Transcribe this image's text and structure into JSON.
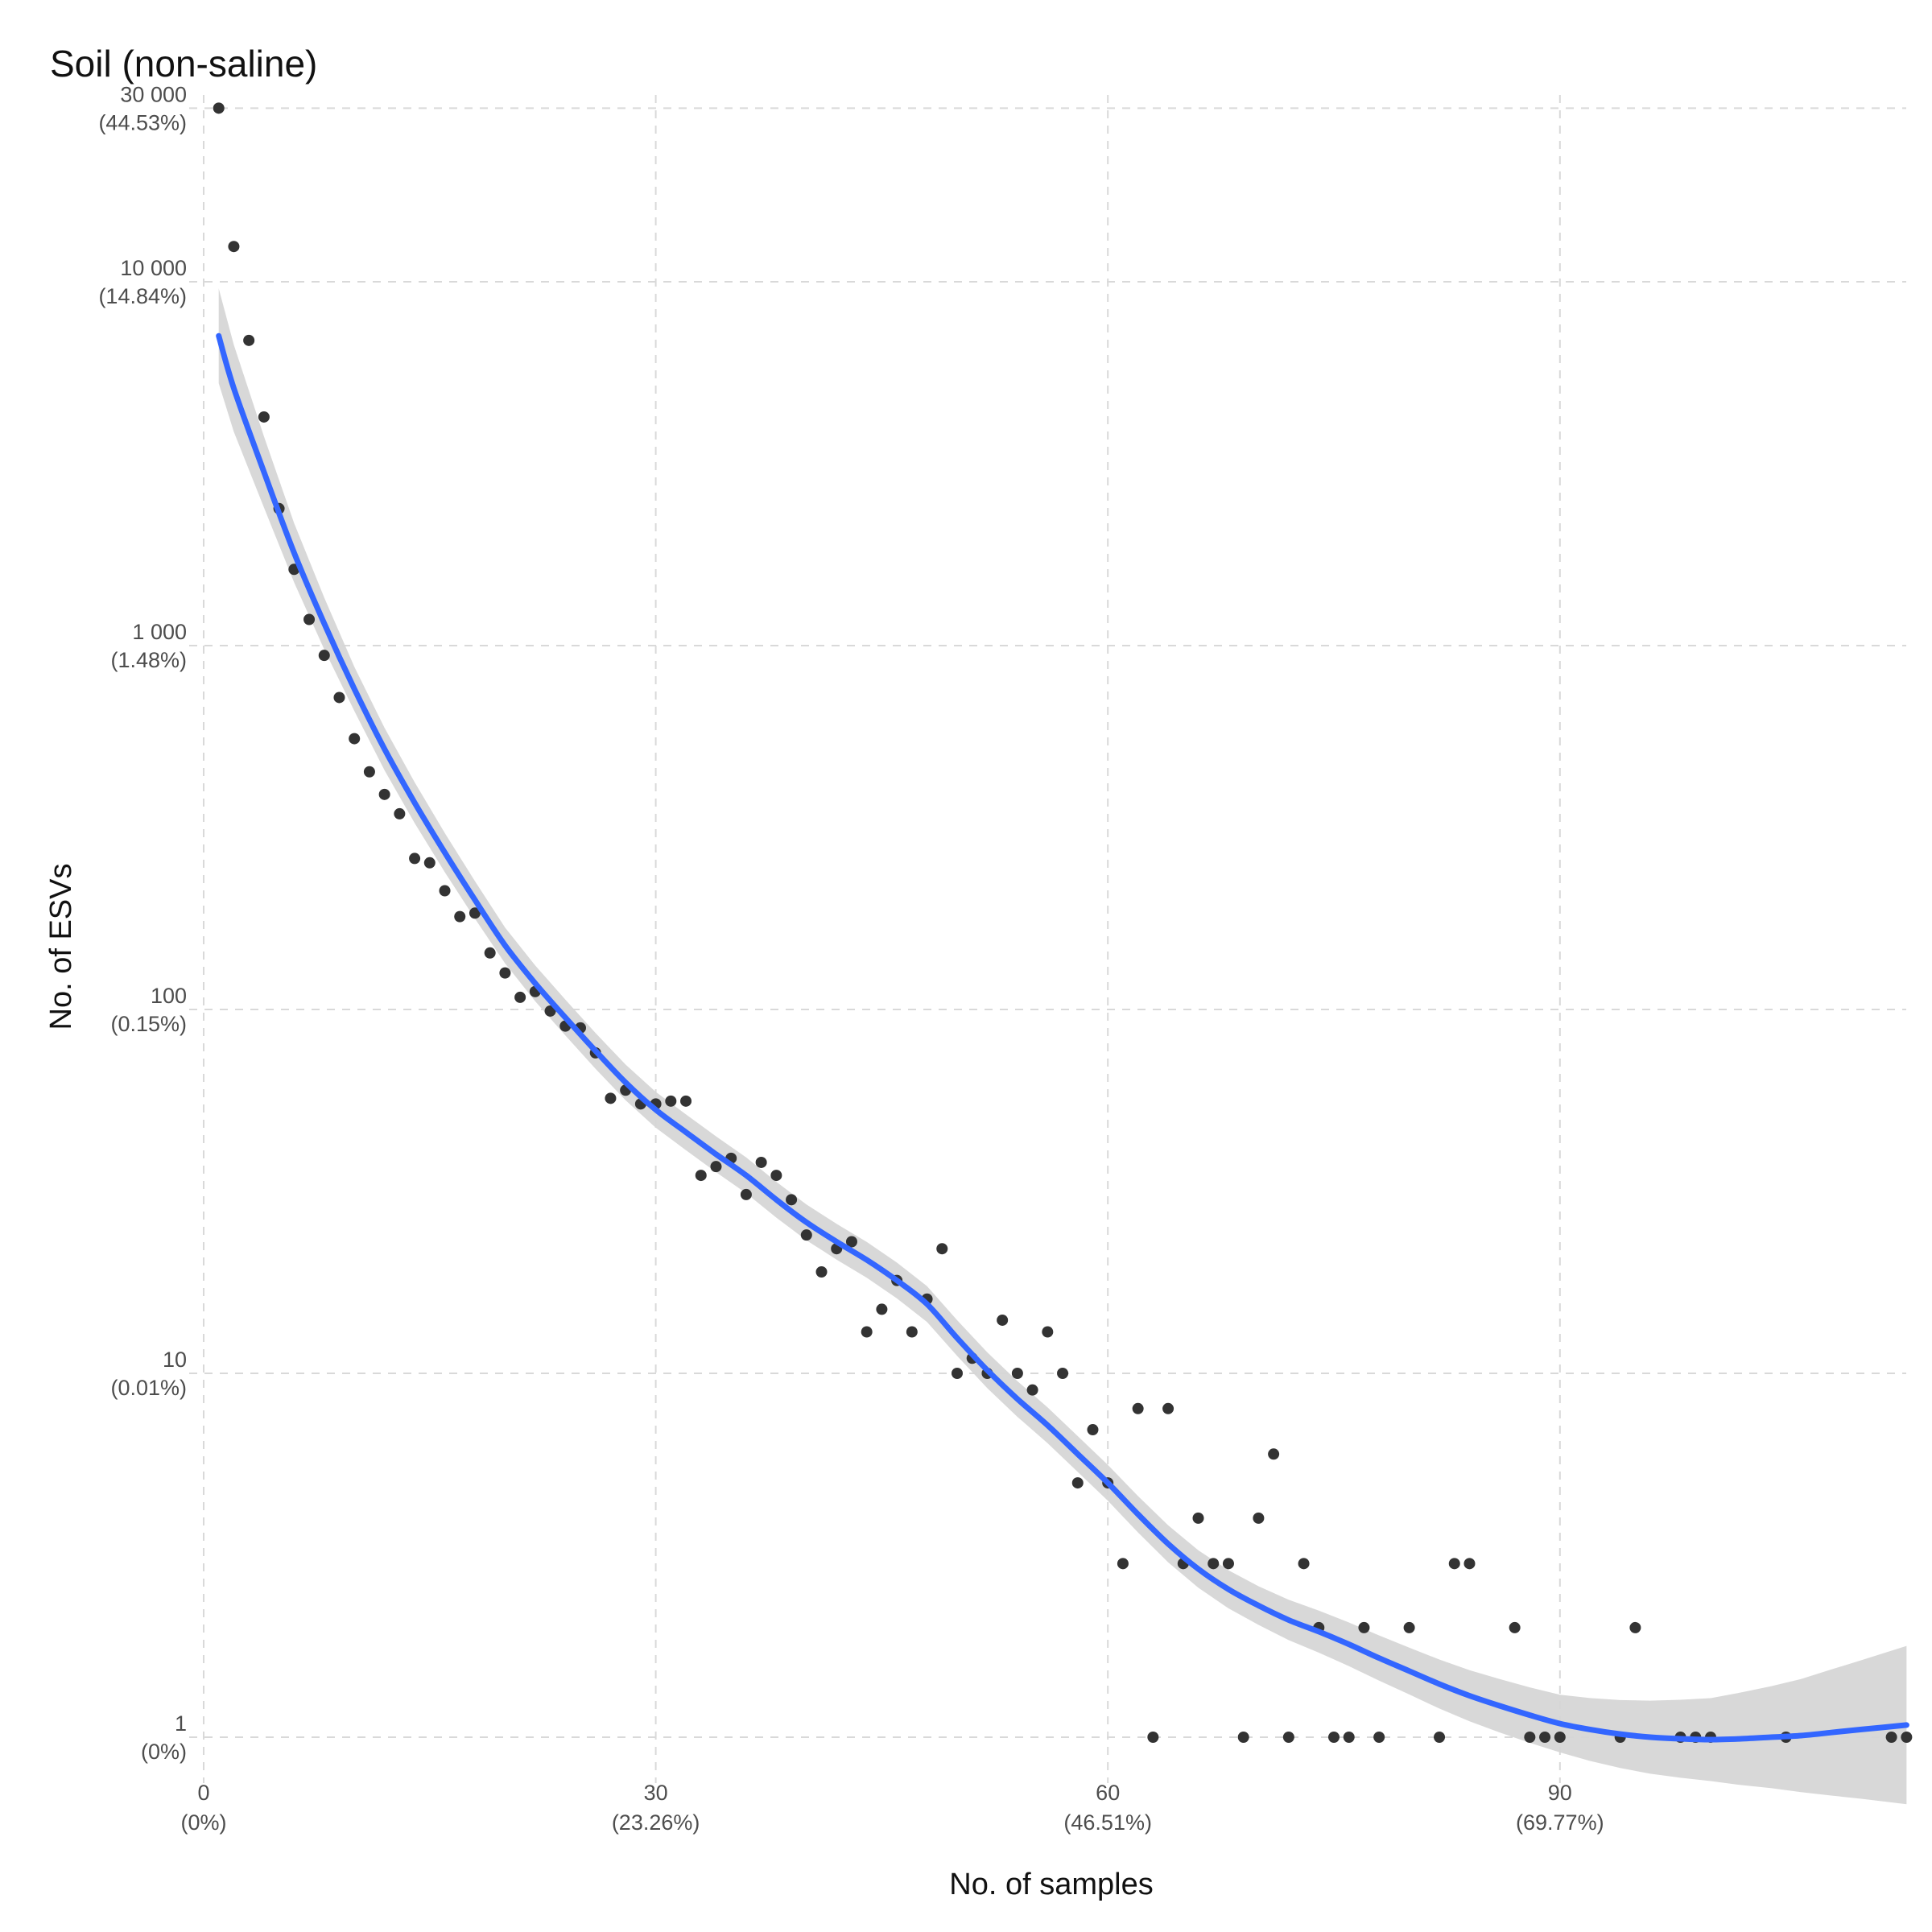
{
  "chart_data": {
    "type": "scatter",
    "title": "Soil (non-saline)",
    "xlabel": "No. of samples",
    "ylabel": "No. of ESVs",
    "x_scale": "linear",
    "y_scale": "log",
    "xlim": [
      0,
      113
    ],
    "ylim": [
      0.5,
      30000
    ],
    "grid": true,
    "legend": "none",
    "x_ticks": [
      {
        "value": 0,
        "label": "0",
        "sublabel": "(0%)"
      },
      {
        "value": 30,
        "label": "30",
        "sublabel": "(23.26%)"
      },
      {
        "value": 60,
        "label": "60",
        "sublabel": "(46.51%)"
      },
      {
        "value": 90,
        "label": "90",
        "sublabel": "(69.77%)"
      }
    ],
    "y_ticks": [
      {
        "value": 30000,
        "label": "30 000",
        "sublabel": "(44.53%)"
      },
      {
        "value": 10000,
        "label": "10 000",
        "sublabel": "(14.84%)"
      },
      {
        "value": 1000,
        "label": "1 000",
        "sublabel": "(1.48%)"
      },
      {
        "value": 100,
        "label": "100",
        "sublabel": "(0.15%)"
      },
      {
        "value": 10,
        "label": "10",
        "sublabel": "(0.01%)"
      },
      {
        "value": 1,
        "label": "1",
        "sublabel": "(0%)"
      }
    ],
    "point_color": "#333333",
    "points": [
      [
        1,
        30000
      ],
      [
        2,
        12500
      ],
      [
        3,
        6900
      ],
      [
        4,
        4250
      ],
      [
        5,
        2380
      ],
      [
        6,
        1620
      ],
      [
        7,
        1180
      ],
      [
        8,
        940
      ],
      [
        9,
        720
      ],
      [
        10,
        555
      ],
      [
        11,
        450
      ],
      [
        12,
        390
      ],
      [
        13,
        345
      ],
      [
        14,
        260
      ],
      [
        15,
        253
      ],
      [
        16,
        212
      ],
      [
        17,
        180
      ],
      [
        18,
        184
      ],
      [
        19,
        143
      ],
      [
        20,
        126
      ],
      [
        21,
        108
      ],
      [
        22,
        112
      ],
      [
        23,
        99
      ],
      [
        24,
        90
      ],
      [
        25,
        89
      ],
      [
        26,
        76
      ],
      [
        27,
        57
      ],
      [
        28,
        60
      ],
      [
        29,
        55
      ],
      [
        30,
        55
      ],
      [
        31,
        56
      ],
      [
        32,
        56
      ],
      [
        33,
        35
      ],
      [
        34,
        37
      ],
      [
        35,
        39
      ],
      [
        36,
        31
      ],
      [
        37,
        38
      ],
      [
        38,
        35
      ],
      [
        39,
        30
      ],
      [
        40,
        24
      ],
      [
        41,
        19
      ],
      [
        42,
        22
      ],
      [
        43,
        23
      ],
      [
        44,
        13
      ],
      [
        45,
        15
      ],
      [
        46,
        18
      ],
      [
        47,
        13
      ],
      [
        48,
        16
      ],
      [
        49,
        22
      ],
      [
        50,
        10
      ],
      [
        51,
        11
      ],
      [
        52,
        10
      ],
      [
        53,
        14
      ],
      [
        54,
        10
      ],
      [
        55,
        9
      ],
      [
        56,
        13
      ],
      [
        57,
        10
      ],
      [
        58,
        5
      ],
      [
        59,
        7
      ],
      [
        60,
        5
      ],
      [
        61,
        3
      ],
      [
        62,
        8
      ],
      [
        63,
        1
      ],
      [
        64,
        8
      ],
      [
        65,
        3
      ],
      [
        66,
        4
      ],
      [
        67,
        3
      ],
      [
        68,
        3
      ],
      [
        69,
        1
      ],
      [
        70,
        4
      ],
      [
        71,
        6
      ],
      [
        72,
        1
      ],
      [
        73,
        3
      ],
      [
        74,
        2
      ],
      [
        75,
        1
      ],
      [
        76,
        1
      ],
      [
        77,
        2
      ],
      [
        78,
        1
      ],
      [
        80,
        2
      ],
      [
        82,
        1
      ],
      [
        83,
        3
      ],
      [
        84,
        3
      ],
      [
        87,
        2
      ],
      [
        88,
        1
      ],
      [
        89,
        1
      ],
      [
        90,
        1
      ],
      [
        94,
        1
      ],
      [
        95,
        2
      ],
      [
        98,
        1
      ],
      [
        99,
        1
      ],
      [
        100,
        1
      ],
      [
        105,
        1
      ],
      [
        112,
        1
      ],
      [
        113,
        1
      ]
    ],
    "trend": {
      "type": "smooth",
      "color": "#3366ff",
      "band_color": "#d6d6d6",
      "points": [
        [
          1,
          7100
        ],
        [
          2,
          5100
        ],
        [
          4,
          3000
        ],
        [
          6,
          1800
        ],
        [
          8,
          1150
        ],
        [
          10,
          760
        ],
        [
          12,
          520
        ],
        [
          14,
          370
        ],
        [
          16,
          270
        ],
        [
          18,
          200
        ],
        [
          20,
          150
        ],
        [
          22,
          118
        ],
        [
          24,
          95
        ],
        [
          26,
          77
        ],
        [
          28,
          63
        ],
        [
          30,
          53
        ],
        [
          32,
          46
        ],
        [
          34,
          40
        ],
        [
          36,
          35
        ],
        [
          38,
          30
        ],
        [
          40,
          26
        ],
        [
          42,
          23
        ],
        [
          44,
          20.5
        ],
        [
          46,
          18
        ],
        [
          48,
          15.5
        ],
        [
          50,
          12.5
        ],
        [
          52,
          10.2
        ],
        [
          54,
          8.5
        ],
        [
          56,
          7.2
        ],
        [
          58,
          6.0
        ],
        [
          60,
          5.0
        ],
        [
          62,
          4.1
        ],
        [
          64,
          3.4
        ],
        [
          66,
          2.9
        ],
        [
          68,
          2.55
        ],
        [
          70,
          2.3
        ],
        [
          72,
          2.1
        ],
        [
          74,
          1.95
        ],
        [
          76,
          1.8
        ],
        [
          78,
          1.65
        ],
        [
          80,
          1.52
        ],
        [
          82,
          1.4
        ],
        [
          84,
          1.3
        ],
        [
          86,
          1.22
        ],
        [
          88,
          1.15
        ],
        [
          90,
          1.09
        ],
        [
          92,
          1.05
        ],
        [
          94,
          1.02
        ],
        [
          96,
          1.0
        ],
        [
          98,
          0.99
        ],
        [
          100,
          0.985
        ],
        [
          102,
          0.99
        ],
        [
          104,
          1.0
        ],
        [
          106,
          1.01
        ],
        [
          108,
          1.03
        ],
        [
          110,
          1.05
        ],
        [
          113,
          1.08
        ]
      ],
      "band_halfwidth_factor": [
        [
          1,
          1.35
        ],
        [
          5,
          1.22
        ],
        [
          10,
          1.15
        ],
        [
          20,
          1.12
        ],
        [
          30,
          1.12
        ],
        [
          40,
          1.12
        ],
        [
          50,
          1.12
        ],
        [
          60,
          1.12
        ],
        [
          70,
          1.13
        ],
        [
          80,
          1.16
        ],
        [
          90,
          1.2
        ],
        [
          95,
          1.25
        ],
        [
          100,
          1.3
        ],
        [
          105,
          1.4
        ],
        [
          110,
          1.55
        ],
        [
          113,
          1.65
        ]
      ]
    }
  }
}
